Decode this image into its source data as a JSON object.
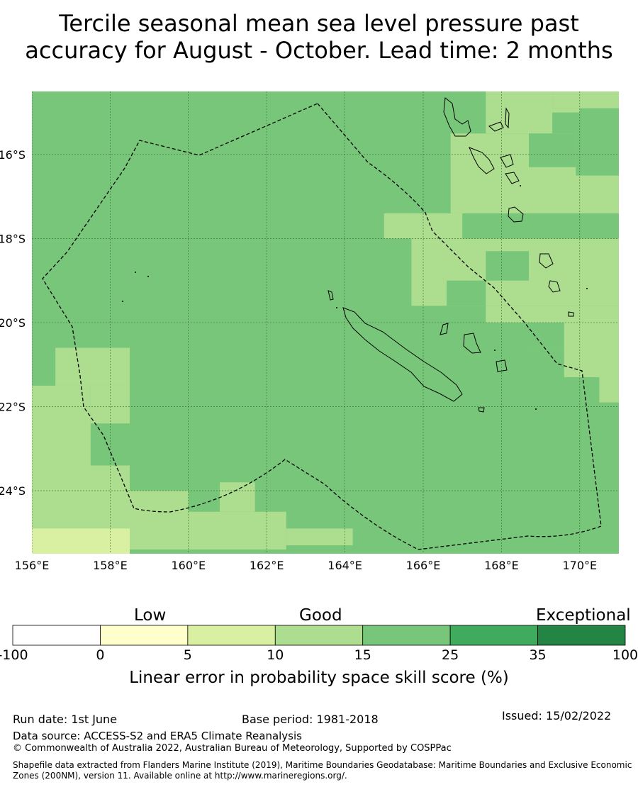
{
  "title_line1": "Tercile seasonal mean sea level pressure past",
  "title_line2": "accuracy for August - October. Lead time: 2 months",
  "map": {
    "lon_range": [
      156,
      171
    ],
    "lat_range": [
      -25.5,
      -14.5
    ],
    "lon_ticks": [
      {
        "value": 156,
        "label": "156°E"
      },
      {
        "value": 158,
        "label": "158°E"
      },
      {
        "value": 160,
        "label": "160°E"
      },
      {
        "value": 162,
        "label": "162°E"
      },
      {
        "value": 164,
        "label": "164°E"
      },
      {
        "value": 166,
        "label": "166°E"
      },
      {
        "value": 168,
        "label": "168°E"
      },
      {
        "value": 170,
        "label": "170°E"
      }
    ],
    "lat_ticks": [
      {
        "value": -16,
        "label": "16°S"
      },
      {
        "value": -18,
        "label": "18°S"
      },
      {
        "value": -20,
        "label": "20°S"
      },
      {
        "value": -22,
        "label": "22°S"
      },
      {
        "value": -24,
        "label": "24°S"
      }
    ],
    "base_class": 4,
    "patches": [
      {
        "cls": 3,
        "cells": [
          [
            156.6,
            -21.5,
            158.5,
            -20.6
          ],
          [
            156,
            -23.4,
            157.5,
            -21.5
          ],
          [
            156,
            -25.3,
            158.5,
            -23.4
          ],
          [
            157.5,
            -22.4,
            158.5,
            -21.5
          ],
          [
            158.5,
            -25.4,
            160,
            -24
          ],
          [
            160,
            -25.4,
            162.5,
            -24.5
          ],
          [
            160.8,
            -24.5,
            161.7,
            -23.8
          ],
          [
            162.5,
            -25.3,
            164.2,
            -24.9
          ],
          [
            165,
            -18.0,
            167,
            -17.4
          ],
          [
            165.7,
            -19.6,
            171,
            -18.0
          ],
          [
            166.7,
            -17.4,
            171,
            -15.5
          ],
          [
            167.6,
            -15.5,
            169.3,
            -14.5
          ],
          [
            169.3,
            -14.9,
            171,
            -14.5
          ],
          [
            168.6,
            -14.9,
            170.0,
            -15.0
          ],
          [
            167.6,
            -20.0,
            171,
            -19.6
          ],
          [
            168.7,
            -20.6,
            171,
            -20.0
          ],
          [
            169.6,
            -21.3,
            171,
            -20.6
          ],
          [
            170.5,
            -21.0,
            171,
            -21.9
          ]
        ]
      },
      {
        "cls": 4,
        "cells": [
          [
            166.6,
            -19.6,
            167.6,
            -19.0
          ],
          [
            167.6,
            -19.0,
            168.7,
            -18.3
          ],
          [
            168.4,
            -20.6,
            169.6,
            -20.0
          ],
          [
            169.9,
            -16.5,
            171,
            -15.0
          ],
          [
            168.7,
            -16.3,
            169.9,
            -15.5
          ],
          [
            170.5,
            -15.8,
            171,
            -15.2
          ]
        ]
      },
      {
        "cls": 2,
        "cells": [
          [
            156,
            -25.6,
            158.5,
            -24.9
          ],
          [
            156,
            -25.6,
            157.5,
            -25.0
          ]
        ]
      },
      {
        "cls": 1,
        "cells": [
          [
            157.5,
            -25.6,
            158.5,
            -25.5
          ]
        ]
      }
    ]
  },
  "colorbar": {
    "categories": [
      "Low",
      "Good",
      "Exceptional"
    ],
    "bins": [
      {
        "from": -100,
        "to": 0,
        "color": "#ffffff"
      },
      {
        "from": 0,
        "to": 5,
        "color": "#ffffcc"
      },
      {
        "from": 5,
        "to": 10,
        "color": "#d9f0a3"
      },
      {
        "from": 10,
        "to": 15,
        "color": "#addd8e"
      },
      {
        "from": 15,
        "to": 25,
        "color": "#78c679"
      },
      {
        "from": 25,
        "to": 35,
        "color": "#41ab5d"
      },
      {
        "from": 35,
        "to": 100,
        "color": "#238443"
      }
    ],
    "tick_labels": [
      "-100",
      "0",
      "5",
      "10",
      "15",
      "25",
      "35",
      "100"
    ],
    "label": "Linear error in probability space skill score (%)"
  },
  "footer": {
    "run_date": "Run date: 1st June",
    "base_period": "Base period: 1981-2018",
    "issued": "Issued: 15/02/2022",
    "data_source": "Data source: ACCESS-S2 and ERA5 Climate Reanalysis",
    "copyright": "© Commonwealth of Australia 2022, Australian Bureau of Meteorology, Supported by COSPPac",
    "shapefile": "Shapefile data extracted from Flanders Marine Institute (2019), Maritime Boundaries Geodatabase: Maritime Boundaries and Exclusive Economic Zones (200NM), version 11. Available online at http://www.marineregions.org/."
  }
}
